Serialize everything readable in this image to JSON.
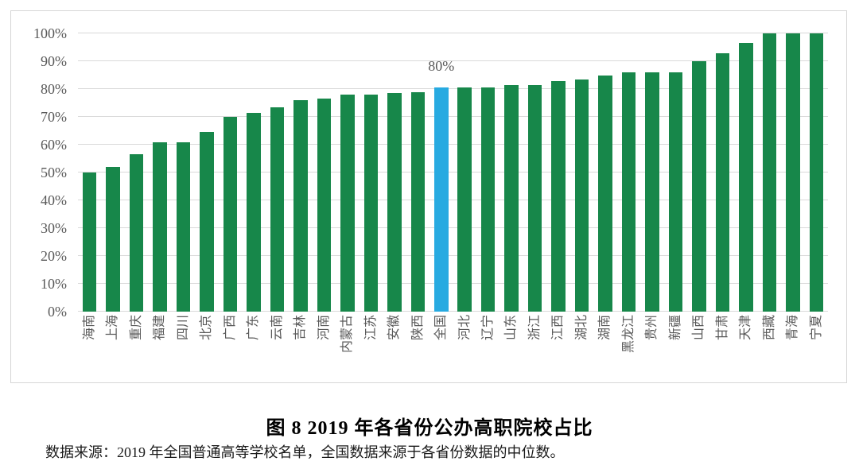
{
  "figure": {
    "title": "图 8 2019 年各省份公办高职院校占比",
    "source_note": "数据来源：2019 年全国普通高等学校名单，全国数据来源于各省份数据的中位数。"
  },
  "chart_data": {
    "type": "bar",
    "title": "图 8 2019 年各省份公办高职院校占比",
    "xlabel": "",
    "ylabel": "",
    "ylim": [
      0,
      100
    ],
    "grid": true,
    "legend": "none",
    "y_tick_values": [
      0,
      10,
      20,
      30,
      40,
      50,
      60,
      70,
      80,
      90,
      100
    ],
    "y_tick_labels": [
      "0%",
      "10%",
      "20%",
      "30%",
      "40%",
      "50%",
      "60%",
      "70%",
      "80%",
      "90%",
      "100%"
    ],
    "categories": [
      "海南",
      "上海",
      "重庆",
      "福建",
      "四川",
      "北京",
      "广西",
      "广东",
      "云南",
      "吉林",
      "河南",
      "内蒙古",
      "江苏",
      "安徽",
      "陕西",
      "全国",
      "河北",
      "辽宁",
      "山东",
      "浙江",
      "江西",
      "湖北",
      "湖南",
      "黑龙江",
      "贵州",
      "新疆",
      "山西",
      "甘肃",
      "天津",
      "西藏",
      "青海",
      "宁夏"
    ],
    "values": [
      50,
      52,
      56.5,
      61,
      61,
      64.5,
      70,
      71.5,
      73.5,
      76,
      76.5,
      78,
      78,
      78.5,
      79,
      80.5,
      80.5,
      80.5,
      81.5,
      81.5,
      83,
      83.5,
      85,
      86,
      86,
      86,
      90,
      93,
      96.5,
      100,
      100,
      100
    ],
    "highlight_category": "全国",
    "annotation": {
      "text": "80%",
      "category": "全国"
    },
    "colors": {
      "bar": "#17874a",
      "highlight": "#27aae1",
      "gridline": "#d9d9d9",
      "axis_text": "#595959",
      "border": "#d6d6d6"
    }
  }
}
